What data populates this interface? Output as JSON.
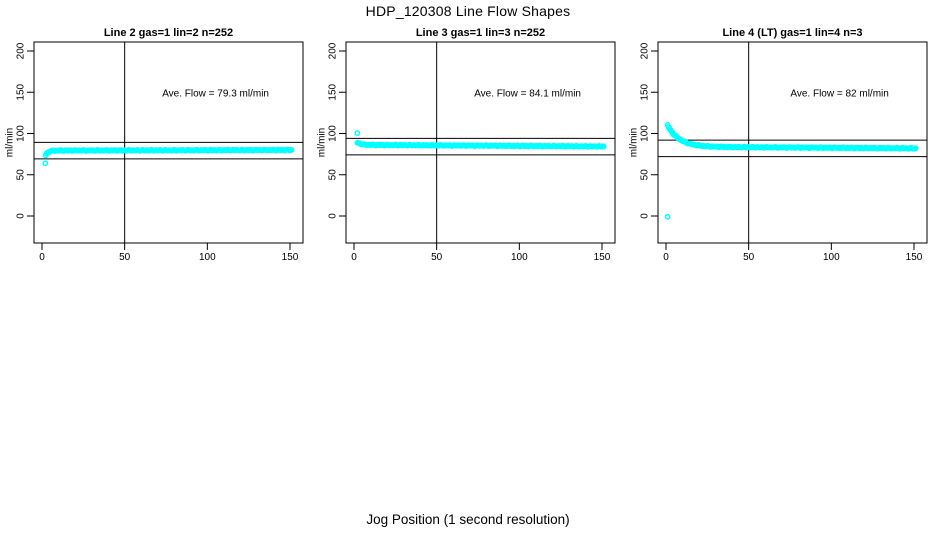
{
  "page": {
    "title": "HDP_120308  Line Flow Shapes",
    "xlabel": "Jog Position (1 second resolution)",
    "background_color": "#ffffff",
    "text_color": "#000000"
  },
  "axes": {
    "ylabel": "ml/min",
    "x_ticks": [
      0,
      50,
      100,
      150
    ],
    "y_ticks": [
      0,
      50,
      100,
      150,
      200
    ],
    "xlim": [
      -5,
      158
    ],
    "ylim": [
      -13,
      212
    ],
    "grid": "off",
    "marker_color": "#00ffff",
    "line_color": "#000000"
  },
  "chart_data": [
    {
      "type": "scatter",
      "title": "Line 2 gas=1 lin=2 n=252",
      "annotation": "Ave. Flow =  79.3  ml/min",
      "ave_flow_ml_min": 79.3,
      "n_points": 252,
      "vline_x": 50,
      "ref_lines_y": [
        89.3,
        69.3
      ],
      "outlier_points": [
        [
          2,
          64
        ]
      ],
      "band": {
        "x_start": 2.2,
        "x_end": 151,
        "start_y": 73.5,
        "plateau_y": 79.3,
        "end_y": 80.0,
        "tau": 1.5,
        "jitter": 0.5,
        "step": 0.6
      }
    },
    {
      "type": "scatter",
      "title": "Line 3 gas=1 lin=3 n=252",
      "annotation": "Ave. Flow =  84.1  ml/min",
      "ave_flow_ml_min": 84.1,
      "n_points": 252,
      "vline_x": 50,
      "ref_lines_y": [
        94.1,
        74.1
      ],
      "outlier_points": [
        [
          2,
          100.5
        ]
      ],
      "band": {
        "x_start": 2.2,
        "x_end": 151,
        "start_y": 89.0,
        "plateau_y": 86.2,
        "end_y": 84.3,
        "tau": 2.2,
        "jitter": 0.5,
        "step": 0.6
      }
    },
    {
      "type": "scatter",
      "title": "Line 4 (LT) gas=1 lin=4 n=3",
      "annotation": "Ave. Flow =  82  ml/min",
      "ave_flow_ml_min": 82,
      "n_points": 3,
      "vline_x": 50,
      "ref_lines_y": [
        92,
        72
      ],
      "outlier_points": [
        [
          1,
          -1
        ]
      ],
      "band": {
        "x_start": 1.0,
        "x_end": 151,
        "start_y": 110.0,
        "plateau_y": 84.0,
        "end_y": 82.0,
        "tau": 7.0,
        "jitter": 0.6,
        "step": 0.6
      }
    }
  ]
}
